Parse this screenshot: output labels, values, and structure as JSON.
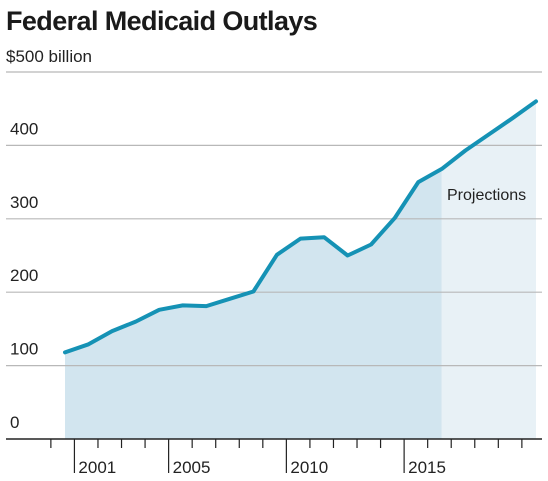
{
  "chart_data": {
    "type": "area",
    "title": "Federal Medicaid Outlays",
    "unit_label": "$500 billion",
    "ylim": [
      0,
      500
    ],
    "y_ticks": [
      0,
      100,
      200,
      300,
      400
    ],
    "xlim": [
      1999.9,
      2019.9
    ],
    "x_tick_labels": [
      {
        "year": 2001,
        "label": "2001"
      },
      {
        "year": 2005,
        "label": "2005"
      },
      {
        "year": 2010,
        "label": "2010"
      },
      {
        "year": 2015,
        "label": "2015"
      }
    ],
    "x": [
      2000,
      2001,
      2002,
      2003,
      2004,
      2005,
      2006,
      2007,
      2008,
      2009,
      2010,
      2011,
      2012,
      2013,
      2014,
      2015,
      2016,
      2017,
      2018,
      2019,
      2020
    ],
    "values": [
      118,
      129,
      147,
      160,
      176,
      182,
      181,
      191,
      201,
      251,
      273,
      275,
      250,
      265,
      301,
      350,
      368,
      393,
      415,
      437,
      460
    ],
    "projection_start": 2016,
    "annotation": "Projections",
    "grid": true,
    "colors": {
      "line": "#1592b5",
      "area_actual": "#d2e5ef",
      "area_projection": "#e8f1f6",
      "grid": "#b8b8b8",
      "axis": "#222222"
    }
  }
}
